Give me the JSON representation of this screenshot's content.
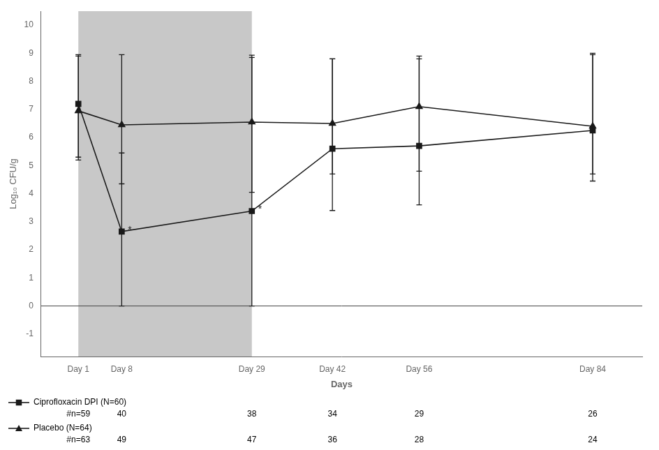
{
  "chart_data": {
    "type": "line",
    "x_label": "Days",
    "y_label": "Log₁₀ CFU/g",
    "x": [
      1,
      8,
      29,
      42,
      56,
      84
    ],
    "series": [
      {
        "name": "Ciprofloxacin DPI (N=60)",
        "color": "#1a1a1a",
        "marker": "square",
        "line_style": "solid",
        "values": [
          7.2,
          2.65,
          3.38,
          5.6,
          5.7,
          6.25
        ],
        "error_upper": [
          1.7,
          2.8,
          5.55,
          3.2,
          3.1,
          2.7
        ],
        "error_lower": [
          1.9,
          2.65,
          3.38,
          2.2,
          2.1,
          1.8
        ],
        "at_risk": [
          "#n=59",
          "40",
          "38",
          "34",
          "29",
          "26"
        ]
      },
      {
        "name": "Placebo (N=64)",
        "color": "#1a1a1a",
        "marker": "triangle",
        "line_style": "solid",
        "values": [
          6.95,
          6.45,
          6.55,
          6.5,
          7.1,
          6.4
        ],
        "error_upper": [
          2.0,
          2.5,
          2.3,
          2.3,
          1.8,
          2.6
        ],
        "error_lower": [
          1.75,
          2.1,
          2.5,
          1.8,
          2.3,
          1.7
        ],
        "at_risk": [
          "#n=63",
          "49",
          "47",
          "36",
          "28",
          "24"
        ]
      }
    ],
    "xlim": [
      -5,
      92
    ],
    "xticks": [
      {
        "value": 1,
        "label": "Day 1"
      },
      {
        "value": 8,
        "label": "Day 8"
      },
      {
        "value": 29,
        "label": "Day 29"
      },
      {
        "value": 42,
        "label": "Day 42"
      },
      {
        "value": 56,
        "label": "Day 56"
      },
      {
        "value": 84,
        "label": "Day 84"
      }
    ],
    "ylim": [
      -1.8,
      10.5
    ],
    "yticks": [
      -1,
      0,
      1,
      2,
      3,
      4,
      5,
      6,
      7,
      8,
      9,
      10
    ],
    "grid": false,
    "legend": "bottom",
    "shaded_regions": [
      {
        "x": [
          1,
          29
        ],
        "color": "#c8c8c8"
      }
    ],
    "hlines": [
      0
    ],
    "annotations": [
      {
        "text": "*",
        "x": 8,
        "y": 2.65
      },
      {
        "text": "*",
        "x": 29,
        "y": 3.38
      }
    ]
  }
}
